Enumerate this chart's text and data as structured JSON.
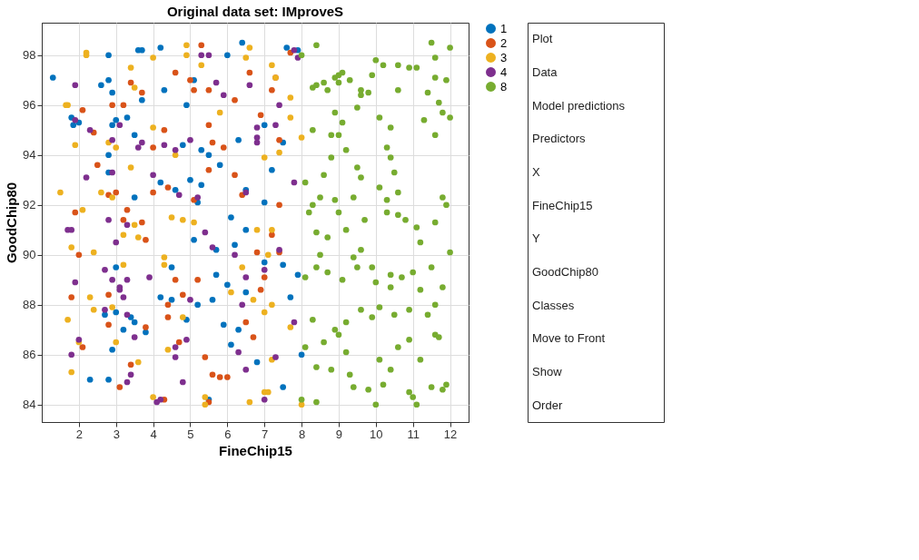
{
  "chart_data": [
    {
      "type": "scatter",
      "title": "Original data set: IMproveS",
      "xlabel": "FineChip15",
      "ylabel": "GoodChip80",
      "xlim": [
        1,
        12.5
      ],
      "ylim": [
        83.3,
        99.3
      ],
      "xticks": [
        2,
        3,
        4,
        5,
        6,
        7,
        8,
        9,
        10,
        11,
        12
      ],
      "yticks": [
        84,
        86,
        88,
        90,
        92,
        94,
        96,
        98
      ],
      "grid": true,
      "legend": "right",
      "marker": "circle",
      "series": [
        {
          "name": "1",
          "color": "#0072bd",
          "x": [
            1.3,
            1.85,
            1.8,
            2.6,
            2.8,
            2.8,
            2.9,
            3.0,
            2.9,
            3.3,
            3.5,
            3.6,
            3.7,
            3.7,
            4.2,
            4.3,
            4.9,
            4.8,
            5.1,
            5.3,
            5.5,
            5.8,
            6.0,
            6.3,
            6.4,
            6.5,
            7.0,
            7.0,
            7.2,
            7.5,
            7.6,
            7.9,
            2.0,
            2.8,
            2.8,
            3.5,
            4.2,
            4.6,
            5.0,
            5.2,
            5.3,
            6.1,
            6.2,
            6.5,
            5.7,
            4.5,
            5.1,
            3.0,
            2.7,
            3.0,
            3.2,
            3.4,
            3.5,
            3.8,
            4.2,
            4.5,
            4.9,
            5.2,
            5.6,
            5.9,
            6.1,
            6.5,
            6.3,
            5.7,
            6.0,
            7.0,
            7.5,
            7.7,
            6.8,
            7.5,
            8.0,
            2.3,
            2.8,
            2.9,
            5.5,
            7.9
          ],
          "values": [
            97.1,
            95.2,
            95.5,
            96.8,
            98.0,
            97.0,
            96.5,
            95.4,
            95.2,
            95.5,
            94.8,
            98.2,
            98.2,
            96.2,
            98.3,
            96.6,
            96.0,
            94.4,
            97.0,
            94.2,
            94.0,
            93.6,
            98.0,
            94.6,
            98.5,
            92.6,
            95.2,
            92.1,
            93.4,
            94.5,
            98.3,
            98.2,
            95.3,
            94.0,
            93.3,
            92.3,
            92.9,
            92.6,
            93.0,
            92.1,
            92.8,
            91.5,
            90.4,
            91.0,
            90.2,
            89.5,
            90.6,
            89.5,
            87.6,
            87.7,
            87.0,
            87.5,
            87.3,
            86.9,
            88.3,
            88.2,
            87.4,
            88.0,
            88.2,
            87.2,
            86.4,
            88.5,
            87.0,
            89.2,
            88.8,
            89.7,
            89.6,
            88.3,
            85.7,
            84.7,
            86.0,
            85.0,
            85.0,
            86.2,
            84.2,
            89.2
          ]
        },
        {
          "name": "2",
          "color": "#d95319",
          "x": [
            2.1,
            2.4,
            2.9,
            3.2,
            3.4,
            3.7,
            4.0,
            4.3,
            4.6,
            5.0,
            5.1,
            5.3,
            5.5,
            5.5,
            5.6,
            5.9,
            6.2,
            6.6,
            6.9,
            7.2,
            7.3,
            7.7,
            7.4,
            7.4,
            2.5,
            3.0,
            3.3,
            3.2,
            3.7,
            4.0,
            4.4,
            5.1,
            5.5,
            6.2,
            6.4,
            1.9,
            2.0,
            2.8,
            3.8,
            4.6,
            5.2,
            6.8,
            7.2,
            7.4,
            6.9,
            7.0,
            6.5,
            6.7,
            4.4,
            4.4,
            4.7,
            4.8,
            1.8,
            2.1,
            2.8,
            3.8,
            3.4,
            3.1,
            5.4,
            5.6,
            5.8,
            6.0,
            4.3,
            5.5,
            2.8
          ],
          "values": [
            95.8,
            94.9,
            96.0,
            96.0,
            96.9,
            96.5,
            94.3,
            95.0,
            97.3,
            97.0,
            96.6,
            98.4,
            96.6,
            95.2,
            94.5,
            94.3,
            96.2,
            97.3,
            95.6,
            96.6,
            97.1,
            98.1,
            92.0,
            94.6,
            93.6,
            92.5,
            91.8,
            91.4,
            91.3,
            92.5,
            92.7,
            92.2,
            93.4,
            93.2,
            92.4,
            91.7,
            90.0,
            92.4,
            90.6,
            89.0,
            89.0,
            90.1,
            90.8,
            90.1,
            88.6,
            89.1,
            87.3,
            86.7,
            88.0,
            87.5,
            86.5,
            88.4,
            88.3,
            86.3,
            87.2,
            87.1,
            85.6,
            84.7,
            85.9,
            85.2,
            85.1,
            85.1,
            84.2,
            84.1,
            88.4
          ]
        },
        {
          "name": "3",
          "color": "#edb120",
          "x": [
            1.65,
            1.7,
            2.2,
            2.2,
            3.4,
            3.5,
            4.0,
            4.0,
            4.9,
            4.9,
            5.3,
            6.6,
            6.5,
            7.2,
            7.3,
            7.7,
            7.7,
            7.0,
            8.0,
            7.4,
            1.9,
            2.8,
            3.0,
            3.4,
            5.8,
            1.5,
            2.6,
            2.9,
            4.6,
            2.4,
            3.2,
            2.1,
            1.8,
            3.5,
            3.6,
            4.5,
            4.3,
            4.3,
            4.8,
            5.1,
            7.2,
            6.8,
            7.1,
            1.7,
            2.0,
            2.9,
            3.0,
            3.2,
            3.6,
            4.4,
            4.8,
            6.4,
            6.1,
            6.7,
            7.0,
            7.2,
            7.2,
            1.8,
            2.3,
            2.4,
            4.0,
            5.4,
            5.4,
            6.6,
            7.0,
            7.1,
            8.0,
            7.7
          ],
          "values": [
            96.0,
            96.0,
            98.1,
            98.0,
            97.5,
            96.7,
            97.9,
            95.1,
            98.4,
            98.0,
            97.6,
            98.3,
            97.9,
            97.6,
            97.1,
            96.3,
            95.5,
            93.9,
            94.7,
            94.1,
            94.4,
            94.5,
            94.3,
            93.5,
            95.7,
            92.5,
            92.5,
            92.3,
            94.0,
            90.1,
            90.8,
            91.8,
            90.3,
            91.2,
            90.7,
            91.5,
            89.9,
            89.6,
            91.4,
            91.3,
            91.0,
            91.0,
            90.0,
            87.4,
            86.5,
            87.9,
            86.5,
            89.6,
            85.7,
            86.2,
            87.5,
            89.5,
            88.5,
            88.2,
            87.7,
            88.0,
            85.8,
            85.3,
            88.3,
            87.8,
            84.3,
            84.3,
            84.0,
            84.1,
            84.5,
            84.5,
            84.0,
            87.1
          ]
        },
        {
          "name": "4",
          "color": "#7e2f8e",
          "x": [
            1.9,
            1.9,
            2.3,
            2.9,
            3.1,
            3.6,
            3.7,
            4.3,
            4.6,
            5.0,
            5.3,
            5.5,
            5.7,
            5.9,
            6.6,
            6.8,
            6.8,
            6.8,
            7.3,
            7.4,
            7.8,
            7.9,
            2.2,
            2.9,
            4.0,
            4.7,
            5.2,
            6.5,
            7.8,
            1.7,
            1.8,
            3.3,
            5.4,
            2.8,
            3.0,
            1.9,
            2.7,
            2.9,
            3.1,
            3.1,
            3.3,
            3.2,
            3.9,
            5.6,
            6.2,
            6.5,
            7.0,
            7.4,
            2.0,
            1.8,
            2.7,
            3.5,
            3.3,
            4.6,
            4.9,
            5.0,
            6.4,
            6.5,
            7.0,
            7.3,
            7.8,
            3.4,
            3.3,
            4.2,
            4.1,
            4.6,
            4.8,
            6.3
          ],
          "values": [
            96.8,
            95.4,
            95.0,
            94.6,
            95.2,
            94.3,
            94.5,
            94.4,
            94.2,
            94.6,
            98.0,
            98.0,
            96.9,
            96.4,
            96.8,
            95.1,
            94.7,
            94.5,
            95.2,
            96.0,
            98.2,
            97.9,
            93.1,
            93.3,
            93.2,
            92.4,
            92.3,
            92.5,
            92.9,
            91.0,
            91.0,
            91.2,
            90.9,
            91.4,
            90.5,
            88.9,
            89.4,
            89.0,
            88.6,
            88.7,
            89.0,
            88.3,
            89.1,
            90.3,
            90.0,
            89.1,
            89.4,
            90.2,
            86.6,
            86.0,
            87.8,
            86.7,
            87.6,
            86.3,
            86.6,
            88.2,
            88.0,
            85.4,
            84.2,
            85.9,
            87.3,
            85.2,
            84.9,
            84.2,
            84.1,
            85.9,
            84.9,
            86.1
          ]
        },
        {
          "name": "8",
          "color": "#77ac30",
          "x": [
            8.0,
            8.3,
            8.4,
            8.6,
            8.4,
            8.7,
            8.9,
            9.0,
            9.0,
            9.1,
            9.3,
            8.8,
            8.3,
            8.9,
            9.0,
            9.1,
            9.5,
            9.6,
            9.6,
            9.9,
            10.0,
            9.8,
            10.2,
            10.6,
            10.6,
            10.9,
            11.1,
            11.5,
            11.6,
            11.6,
            11.9,
            12.0,
            11.4,
            11.7,
            11.3,
            11.6,
            11.8,
            12.0,
            10.4,
            10.1,
            10.3,
            10.4,
            10.5,
            10.6,
            10.1,
            10.3,
            9.6,
            9.5,
            9.2,
            8.8,
            8.6,
            8.5,
            8.3,
            8.1,
            8.9,
            9.4,
            9.2,
            9.0,
            8.2,
            8.7,
            8.5,
            8.4,
            8.1,
            8.7,
            9.1,
            9.5,
            9.4,
            9.9,
            10.0,
            10.4,
            10.7,
            11.0,
            11.5,
            11.2,
            11.4,
            11.6,
            11.8,
            10.9,
            10.5,
            10.1,
            9.9,
            9.6,
            9.2,
            8.9,
            8.6,
            8.3,
            8.1,
            8.4,
            8.8,
            9.3,
            9.4,
            9.8,
            10.0,
            10.2,
            10.9,
            11.0,
            11.1,
            11.8,
            11.9,
            11.2,
            10.9,
            10.6,
            10.1,
            10.4,
            12.0,
            11.9,
            11.8,
            11.6,
            11.1,
            11.2,
            10.8,
            10.6,
            10.3,
            9.7,
            9.6,
            8.4,
            8.0,
            8.4,
            11.6,
            11.7,
            9.0,
            9.2,
            10.4,
            11.5
          ],
          "values": [
            98.0,
            96.7,
            96.8,
            96.9,
            98.4,
            96.6,
            97.1,
            97.2,
            96.9,
            97.3,
            97.0,
            94.8,
            95.0,
            95.7,
            94.8,
            95.3,
            95.9,
            96.4,
            96.6,
            97.2,
            97.8,
            96.5,
            97.6,
            97.6,
            96.6,
            97.5,
            97.5,
            98.5,
            97.9,
            97.1,
            97.0,
            98.3,
            96.5,
            96.1,
            95.4,
            94.8,
            95.7,
            95.5,
            95.1,
            95.5,
            94.3,
            93.9,
            93.3,
            92.5,
            92.7,
            92.2,
            93.1,
            93.5,
            94.2,
            93.9,
            93.2,
            92.3,
            92.0,
            92.9,
            92.2,
            92.3,
            91.0,
            91.7,
            91.7,
            90.7,
            90.0,
            89.5,
            89.1,
            89.3,
            89.0,
            89.5,
            89.9,
            89.5,
            88.9,
            89.2,
            89.1,
            89.3,
            89.5,
            88.6,
            87.6,
            88.0,
            88.7,
            87.8,
            87.6,
            87.9,
            87.5,
            87.8,
            87.3,
            87.0,
            86.5,
            87.4,
            86.3,
            85.5,
            85.4,
            85.2,
            84.7,
            84.6,
            84.0,
            84.8,
            84.5,
            84.3,
            84.0,
            84.6,
            84.8,
            85.8,
            86.6,
            86.3,
            85.8,
            85.4,
            90.1,
            92.0,
            92.3,
            91.3,
            91.1,
            90.5,
            91.4,
            91.6,
            91.7,
            91.4,
            90.2,
            90.9,
            84.2,
            84.1,
            86.8,
            86.7,
            86.8,
            86.1,
            88.7,
            84.7
          ]
        }
      ]
    },
    {
      "type": "other",
      "annotations": [
        "Plot",
        "Data",
        "Model predictions",
        "Predictors",
        "X",
        "FineChip15",
        "Y",
        "GoodChip80",
        "Classes",
        "Move to Front",
        "Show",
        "Order"
      ]
    }
  ]
}
